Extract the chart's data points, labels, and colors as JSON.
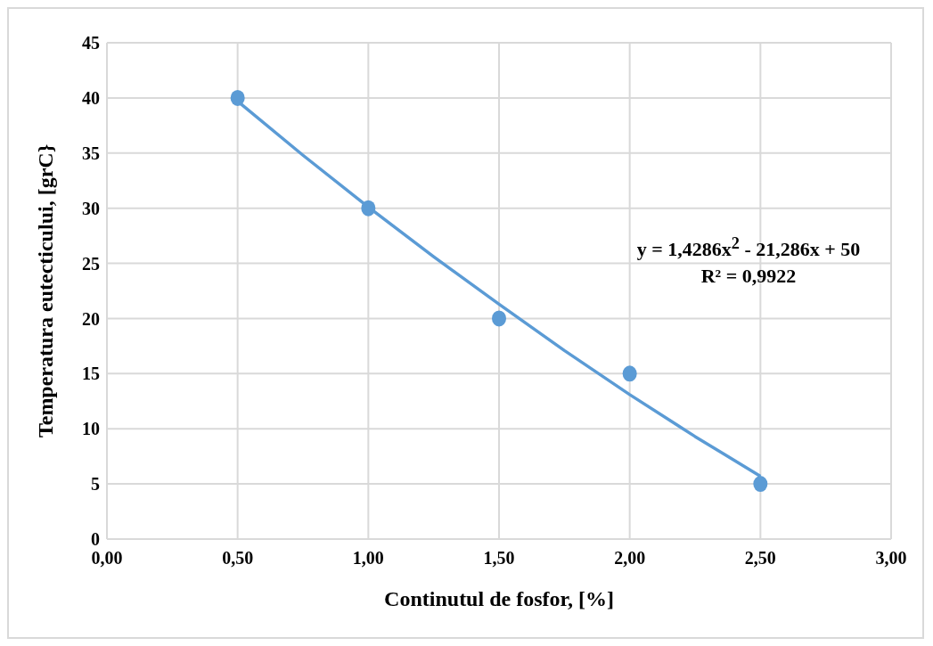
{
  "chart_data": {
    "type": "scatter",
    "xlabel": "Continutul de fosfor, [%]",
    "ylabel": "Temperatura eutecticului, [grC}",
    "series": [
      {
        "color": "#5b9bd5",
        "marker": "circle",
        "x": [
          0.5,
          1,
          1.5,
          2,
          2.5
        ],
        "values": [
          40,
          30,
          20,
          15,
          5
        ]
      },
      {
        "type": "line",
        "marker": "none",
        "color": "#5b9bd5",
        "x": [
          0.5,
          0.75,
          1,
          1.25,
          1.5,
          1.75,
          2,
          2.25,
          2.5
        ],
        "values": [
          39.7,
          34.8,
          30.1,
          25.6,
          21.3,
          17.1,
          13.1,
          9.3,
          5.7
        ]
      }
    ],
    "xlim": [
      0,
      3
    ],
    "xticks": [
      {
        "value": 0,
        "label": "0,00"
      },
      {
        "value": 0.5,
        "label": "0,50"
      },
      {
        "value": 1,
        "label": "1,00"
      },
      {
        "value": 1.5,
        "label": "1,50"
      },
      {
        "value": 2,
        "label": "2,00"
      },
      {
        "value": 2.5,
        "label": "2,50"
      },
      {
        "value": 3,
        "label": "3,00"
      }
    ],
    "ylim": [
      0,
      45
    ],
    "yticks": [
      0,
      5,
      10,
      15,
      20,
      25,
      30,
      35,
      40,
      45
    ],
    "grid": true,
    "line_style": "solid",
    "annotations": [
      "y = 1,4286x$^{2}$ - 21,286x + 50",
      "R² = 0,9922"
    ]
  }
}
